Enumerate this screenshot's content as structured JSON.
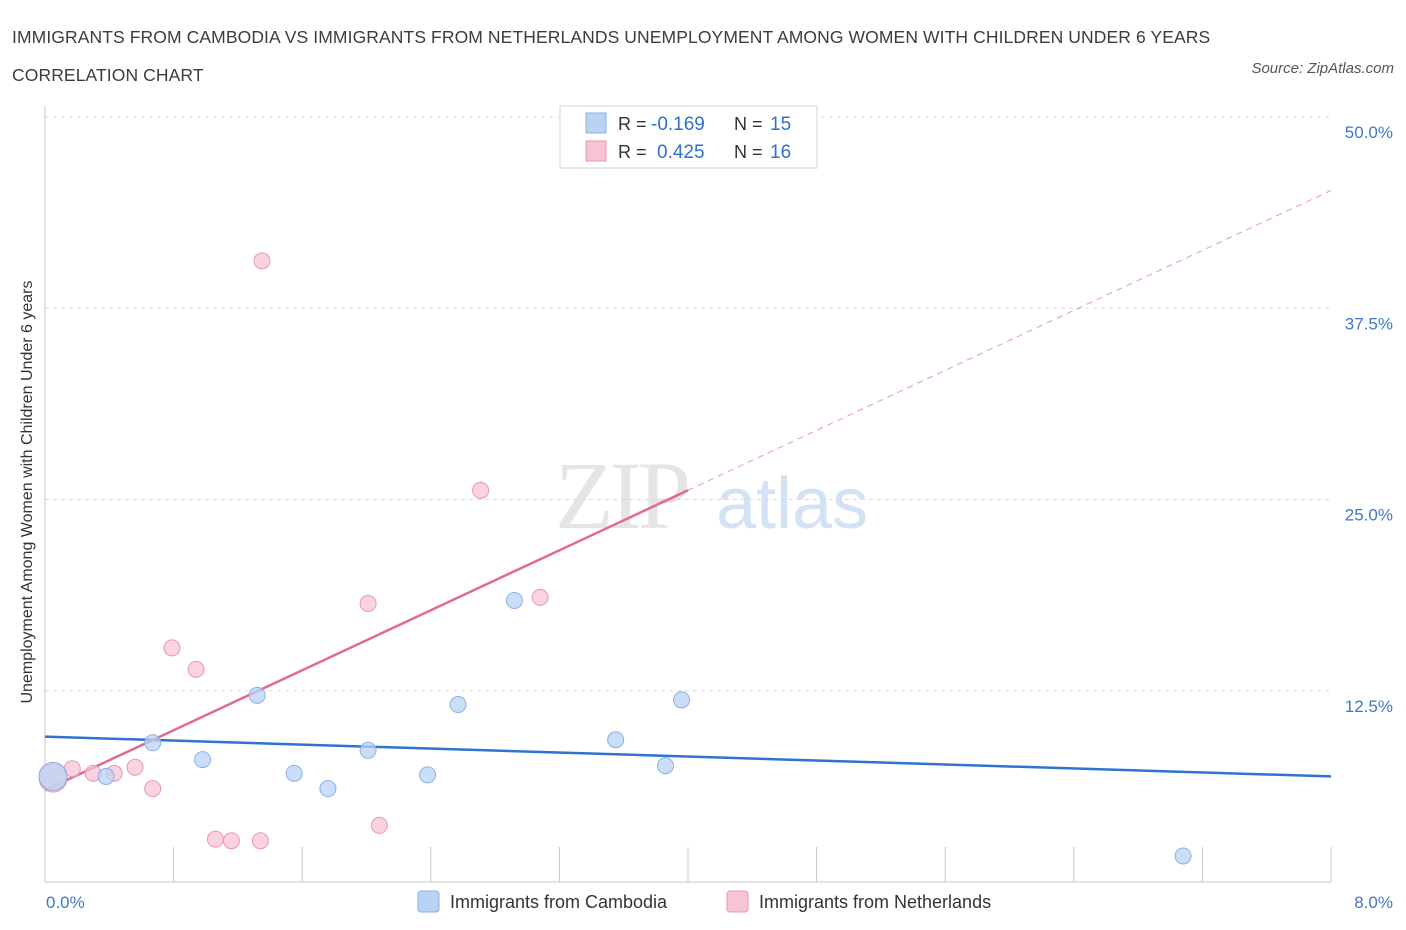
{
  "title": "IMMIGRANTS FROM CAMBODIA VS IMMIGRANTS FROM NETHERLANDS UNEMPLOYMENT AMONG WOMEN WITH CHILDREN UNDER 6 YEARS CORRELATION CHART",
  "source": "Source: ZipAtlas.com",
  "watermark": {
    "zip": "ZIP",
    "atlas": "atlas"
  },
  "colors": {
    "cambodia_fill": "#b9d3f5",
    "cambodia_stroke": "#8ab0e4",
    "cambodia_line": "#2f72d0",
    "netherlands_fill": "#f8c4d3",
    "netherlands_stroke": "#e898b1",
    "netherlands_line": "#e06a92",
    "grid": "#d9d9d9",
    "axis_value": "#3f78c9",
    "stat_value": "#2f6fd0"
  },
  "legend_top": [
    {
      "r_label": "R =",
      "r_value": "-0.169",
      "n_label": "N =",
      "n_value": "15"
    },
    {
      "r_label": "R =",
      "r_value": "0.425",
      "n_label": "N =",
      "n_value": "16"
    }
  ],
  "legend_bottom": [
    "Immigrants from Cambodia",
    "Immigrants from Netherlands"
  ],
  "chart_data": {
    "type": "scatter",
    "title": "IMMIGRANTS FROM CAMBODIA VS IMMIGRANTS FROM NETHERLANDS UNEMPLOYMENT AMONG WOMEN WITH CHILDREN UNDER 6 YEARS CORRELATION CHART",
    "xlabel": "",
    "ylabel": "Unemployment Among Women with Children Under 6 years",
    "xlim": [
      0,
      8
    ],
    "ylim": [
      0,
      50
    ],
    "x_tick_labels": [
      "0.0%",
      "8.0%"
    ],
    "y_ticks": [
      12.5,
      25.0,
      37.5,
      50.0
    ],
    "y_tick_labels": [
      "12.5%",
      "25.0%",
      "37.5%",
      "50.0%"
    ],
    "grid": true,
    "series": [
      {
        "name": "Immigrants from Cambodia",
        "R": -0.169,
        "N": 15,
        "points": [
          {
            "x": 0.05,
            "y": 6.9,
            "big": true
          },
          {
            "x": 0.38,
            "y": 6.9
          },
          {
            "x": 0.67,
            "y": 9.1
          },
          {
            "x": 0.98,
            "y": 8.0
          },
          {
            "x": 1.32,
            "y": 12.2
          },
          {
            "x": 1.55,
            "y": 7.1
          },
          {
            "x": 1.76,
            "y": 6.1
          },
          {
            "x": 2.01,
            "y": 8.6
          },
          {
            "x": 2.38,
            "y": 7.0
          },
          {
            "x": 2.57,
            "y": 11.6
          },
          {
            "x": 2.92,
            "y": 18.4
          },
          {
            "x": 3.55,
            "y": 9.3
          },
          {
            "x": 3.86,
            "y": 7.6
          },
          {
            "x": 3.96,
            "y": 11.9
          },
          {
            "x": 7.08,
            "y": 1.7
          }
        ],
        "trend": {
          "x1": 0.0,
          "y1": 9.5,
          "x2": 8.0,
          "y2": 6.9
        }
      },
      {
        "name": "Immigrants from Netherlands",
        "R": 0.425,
        "N": 16,
        "points": [
          {
            "x": 0.05,
            "y": 6.8,
            "big": true
          },
          {
            "x": 0.17,
            "y": 7.4
          },
          {
            "x": 0.3,
            "y": 7.1
          },
          {
            "x": 0.43,
            "y": 7.1
          },
          {
            "x": 0.56,
            "y": 7.5
          },
          {
            "x": 0.67,
            "y": 6.1
          },
          {
            "x": 0.79,
            "y": 15.3
          },
          {
            "x": 0.94,
            "y": 13.9
          },
          {
            "x": 1.06,
            "y": 2.8
          },
          {
            "x": 1.16,
            "y": 2.7
          },
          {
            "x": 1.34,
            "y": 2.7
          },
          {
            "x": 1.35,
            "y": 40.6
          },
          {
            "x": 2.01,
            "y": 18.2
          },
          {
            "x": 2.08,
            "y": 3.7
          },
          {
            "x": 2.71,
            "y": 25.6
          },
          {
            "x": 3.08,
            "y": 18.6
          }
        ],
        "trend": {
          "x1": 0.0,
          "y1": 6.0,
          "x2": 4.0,
          "y2": 25.6
        },
        "trend_extended": {
          "x1": 4.0,
          "y1": 25.6,
          "x2": 8.0,
          "y2": 45.2
        }
      }
    ]
  }
}
